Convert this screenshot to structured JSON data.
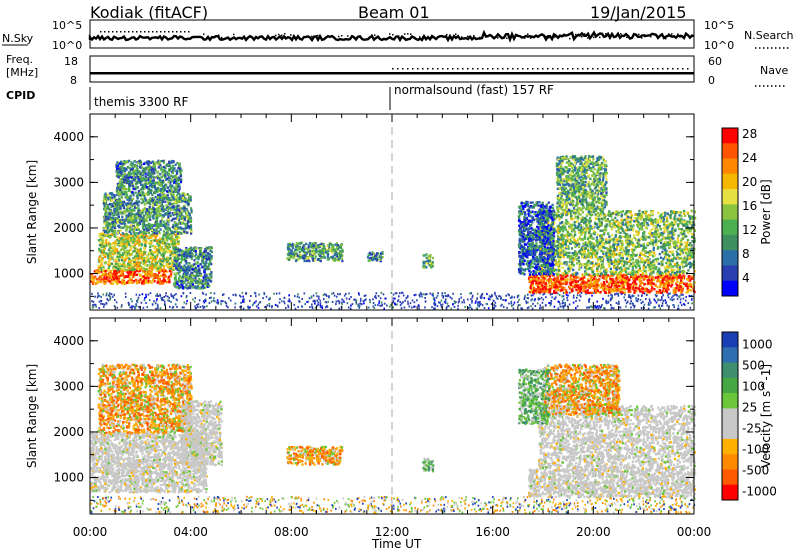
{
  "header": {
    "radar": "Kodiak (fitACF)",
    "beam": "Beam 01",
    "date": "19/Jan/2015"
  },
  "top_panel": {
    "left_label": "N.Sky",
    "left_ticks": [
      "10^5",
      "10^0"
    ],
    "right_ticks": [
      "10^5",
      "10^0"
    ],
    "right_label": "N.Search"
  },
  "freq_panel": {
    "left_label_line1": "Freq.",
    "left_label_line2": "[MHz]",
    "left_ticks": [
      "18",
      "8"
    ],
    "right_ticks": [
      "60",
      "0"
    ],
    "right_label": "Nave"
  },
  "cpid": {
    "label": "CPID",
    "segments": [
      {
        "text": "themis 3300 RF",
        "start_hour": 0
      },
      {
        "text": "normalsound (fast) 157 RF",
        "start_hour": 12
      }
    ]
  },
  "chart_data": [
    {
      "type": "heatmap",
      "panel": "power",
      "ylabel": "Slant Range [km]",
      "xlabel": "Time UT",
      "xlim": [
        0,
        24
      ],
      "ylim": [
        200,
        4500
      ],
      "x_ticks": [
        "00:00",
        "04:00",
        "08:00",
        "12:00",
        "16:00",
        "20:00",
        "00:00"
      ],
      "y_ticks": [
        "1000",
        "2000",
        "3000",
        "4000"
      ],
      "colorbar": {
        "label": "Power [dB]",
        "ticks": [
          "4",
          "8",
          "12",
          "16",
          "20",
          "24",
          "28"
        ],
        "colors": [
          "#0000ff",
          "#2a3fb0",
          "#2a6fa8",
          "#3f8f5f",
          "#4caf50",
          "#8ac43f",
          "#e7e043",
          "#f5b800",
          "#ff8800",
          "#ff5500",
          "#ff0000"
        ]
      },
      "regions": [
        {
          "t": [
            0.0,
            3.2
          ],
          "r": [
            800,
            1100
          ],
          "level": 0.85
        },
        {
          "t": [
            0.3,
            3.5
          ],
          "r": [
            1100,
            1900
          ],
          "level": 0.55
        },
        {
          "t": [
            0.5,
            4.0
          ],
          "r": [
            1900,
            2800
          ],
          "level": 0.35
        },
        {
          "t": [
            1.0,
            3.6
          ],
          "r": [
            2800,
            3500
          ],
          "level": 0.3
        },
        {
          "t": [
            3.3,
            4.8
          ],
          "r": [
            700,
            1600
          ],
          "level": 0.3
        },
        {
          "t": [
            7.8,
            10.0
          ],
          "r": [
            1300,
            1700
          ],
          "level": 0.35
        },
        {
          "t": [
            11.0,
            11.6
          ],
          "r": [
            1300,
            1500
          ],
          "level": 0.3
        },
        {
          "t": [
            13.2,
            13.6
          ],
          "r": [
            1150,
            1450
          ],
          "level": 0.4
        },
        {
          "t": [
            17.4,
            24.0
          ],
          "r": [
            600,
            1000
          ],
          "level": 0.85
        },
        {
          "t": [
            17.8,
            24.0
          ],
          "r": [
            1000,
            2400
          ],
          "level": 0.45
        },
        {
          "t": [
            17.0,
            18.4
          ],
          "r": [
            1000,
            2600
          ],
          "level": 0.2
        },
        {
          "t": [
            18.5,
            20.5
          ],
          "r": [
            2400,
            3600
          ],
          "level": 0.4
        }
      ]
    },
    {
      "type": "heatmap",
      "panel": "velocity",
      "ylabel": "Slant Range [km]",
      "xlabel": "Time UT",
      "xlim": [
        0,
        24
      ],
      "ylim": [
        200,
        4500
      ],
      "x_ticks": [
        "00:00",
        "04:00",
        "08:00",
        "12:00",
        "16:00",
        "20:00",
        "00:00"
      ],
      "y_ticks": [
        "1000",
        "2000",
        "3000",
        "4000"
      ],
      "colorbar": {
        "label": "Velocity [m s^-1]",
        "ticks": [
          "1000",
          "500",
          "100",
          "25",
          "-25",
          "-100",
          "-500",
          "-1000"
        ],
        "colors": [
          "#1a3fb5",
          "#2f6fb0",
          "#3f8f6f",
          "#45a845",
          "#6cc63a",
          "#c8c8c8",
          "#c8c8c8",
          "#ffb000",
          "#ff8a00",
          "#ff5a00",
          "#ff0000"
        ]
      },
      "regions": [
        {
          "t": [
            0.0,
            4.6
          ],
          "r": [
            700,
            2000
          ],
          "kind": "gray"
        },
        {
          "t": [
            0.3,
            4.0
          ],
          "r": [
            2000,
            3500
          ],
          "kind": "orange"
        },
        {
          "t": [
            3.6,
            5.2
          ],
          "r": [
            1300,
            2700
          ],
          "kind": "gray"
        },
        {
          "t": [
            7.8,
            10.0
          ],
          "r": [
            1300,
            1700
          ],
          "kind": "orange"
        },
        {
          "t": [
            13.2,
            13.6
          ],
          "r": [
            1150,
            1450
          ],
          "kind": "green"
        },
        {
          "t": [
            17.4,
            24.0
          ],
          "r": [
            600,
            1200
          ],
          "kind": "gray"
        },
        {
          "t": [
            17.8,
            24.0
          ],
          "r": [
            1200,
            2600
          ],
          "kind": "gray"
        },
        {
          "t": [
            18.0,
            21.0
          ],
          "r": [
            2400,
            3500
          ],
          "kind": "orange"
        },
        {
          "t": [
            17.0,
            18.2
          ],
          "r": [
            2200,
            3400
          ],
          "kind": "green"
        }
      ]
    }
  ],
  "xlabel": "Time UT"
}
